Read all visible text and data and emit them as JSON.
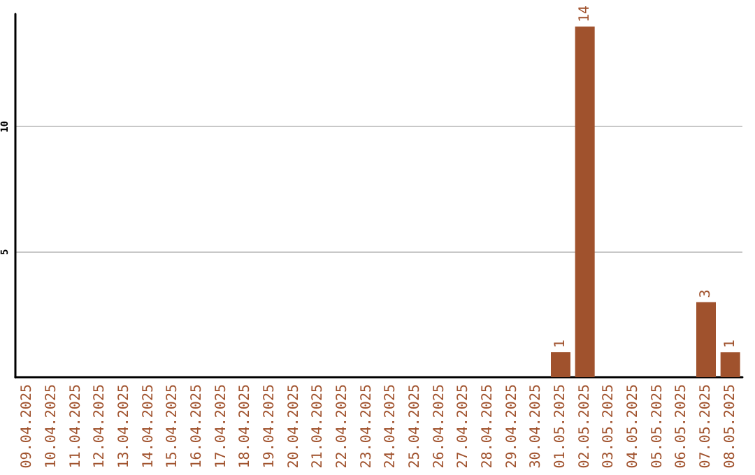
{
  "chart_data": {
    "type": "bar",
    "categories": [
      "09.04.2025",
      "10.04.2025",
      "11.04.2025",
      "12.04.2025",
      "13.04.2025",
      "14.04.2025",
      "15.04.2025",
      "16.04.2025",
      "17.04.2025",
      "18.04.2025",
      "19.04.2025",
      "20.04.2025",
      "21.04.2025",
      "22.04.2025",
      "23.04.2025",
      "24.04.2025",
      "25.04.2025",
      "26.04.2025",
      "27.04.2025",
      "28.04.2025",
      "29.04.2025",
      "30.04.2025",
      "01.05.2025",
      "02.05.2025",
      "03.05.2025",
      "04.05.2025",
      "05.05.2025",
      "06.05.2025",
      "07.05.2025",
      "08.05.2025"
    ],
    "values": [
      0,
      0,
      0,
      0,
      0,
      0,
      0,
      0,
      0,
      0,
      0,
      0,
      0,
      0,
      0,
      0,
      0,
      0,
      0,
      0,
      0,
      0,
      1,
      14,
      0,
      0,
      0,
      0,
      3,
      1
    ],
    "value_labels": [
      null,
      null,
      null,
      null,
      null,
      null,
      null,
      null,
      null,
      null,
      null,
      null,
      null,
      null,
      null,
      null,
      null,
      null,
      null,
      null,
      null,
      null,
      "1",
      "14",
      null,
      null,
      null,
      null,
      "3",
      "1"
    ],
    "color": "#a0522d",
    "ylim": [
      0,
      14.5
    ],
    "yticks": [
      5,
      10
    ],
    "grid": "y"
  }
}
